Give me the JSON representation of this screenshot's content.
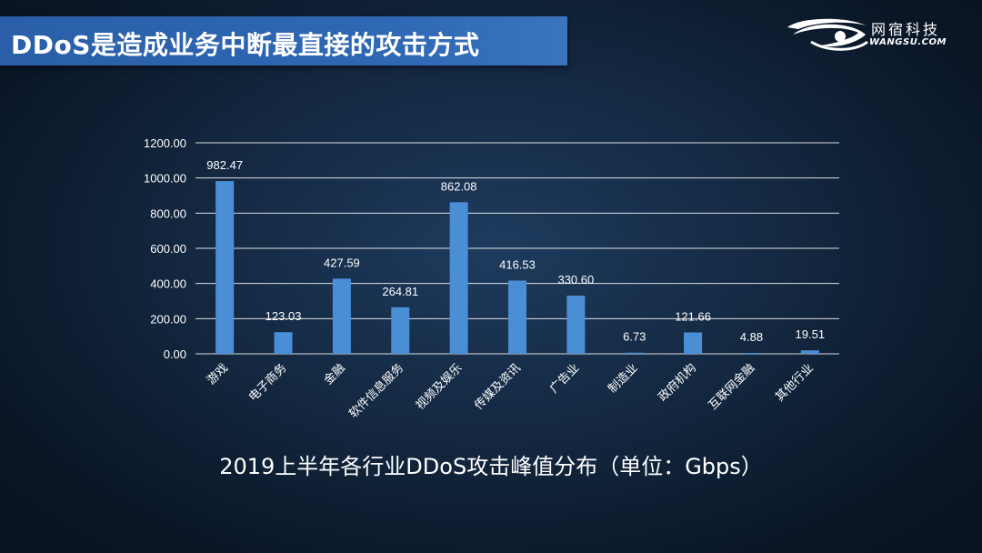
{
  "slide": {
    "title": "DDoS是造成业务中断最直接的攻击方式",
    "caption": "2019上半年各行业DDoS攻击峰值分布（单位：Gbps）"
  },
  "logo": {
    "cn": "网宿科技",
    "en": "WANGSU.COM"
  },
  "colors": {
    "bar": "#4a8fd6",
    "grid": "#ffffff",
    "title_bg": "#2e64b0"
  },
  "chart_data": {
    "type": "bar",
    "categories": [
      "游戏",
      "电子商务",
      "金融",
      "软件信息服务",
      "视频及娱乐",
      "传媒及资讯",
      "广告业",
      "制造业",
      "政府机构",
      "互联网金融",
      "其他行业"
    ],
    "values": [
      982.47,
      123.03,
      427.59,
      264.81,
      862.08,
      416.53,
      330.6,
      6.73,
      121.66,
      4.88,
      19.51
    ],
    "value_labels": [
      "982.47",
      "123.03",
      "427.59",
      "264.81",
      "862.08",
      "416.53",
      "330.60",
      "6.73",
      "121.66",
      "4.88",
      "19.51"
    ],
    "ylim": [
      0,
      1200
    ],
    "yticks": [
      "0.00",
      "200.00",
      "400.00",
      "600.00",
      "800.00",
      "1000.00",
      "1200.00"
    ],
    "grid": true,
    "title": "",
    "xlabel": "",
    "ylabel": ""
  }
}
